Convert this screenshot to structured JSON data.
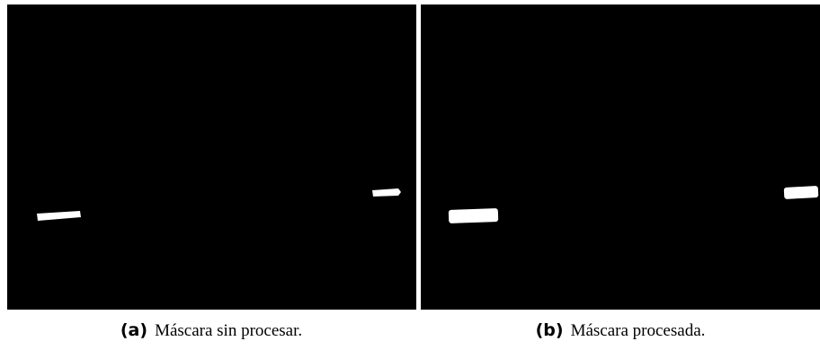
{
  "subfigures": [
    {
      "label": "(a)",
      "caption": "Máscara sin procesar."
    },
    {
      "label": "(b)",
      "caption": "Máscara procesada."
    }
  ]
}
